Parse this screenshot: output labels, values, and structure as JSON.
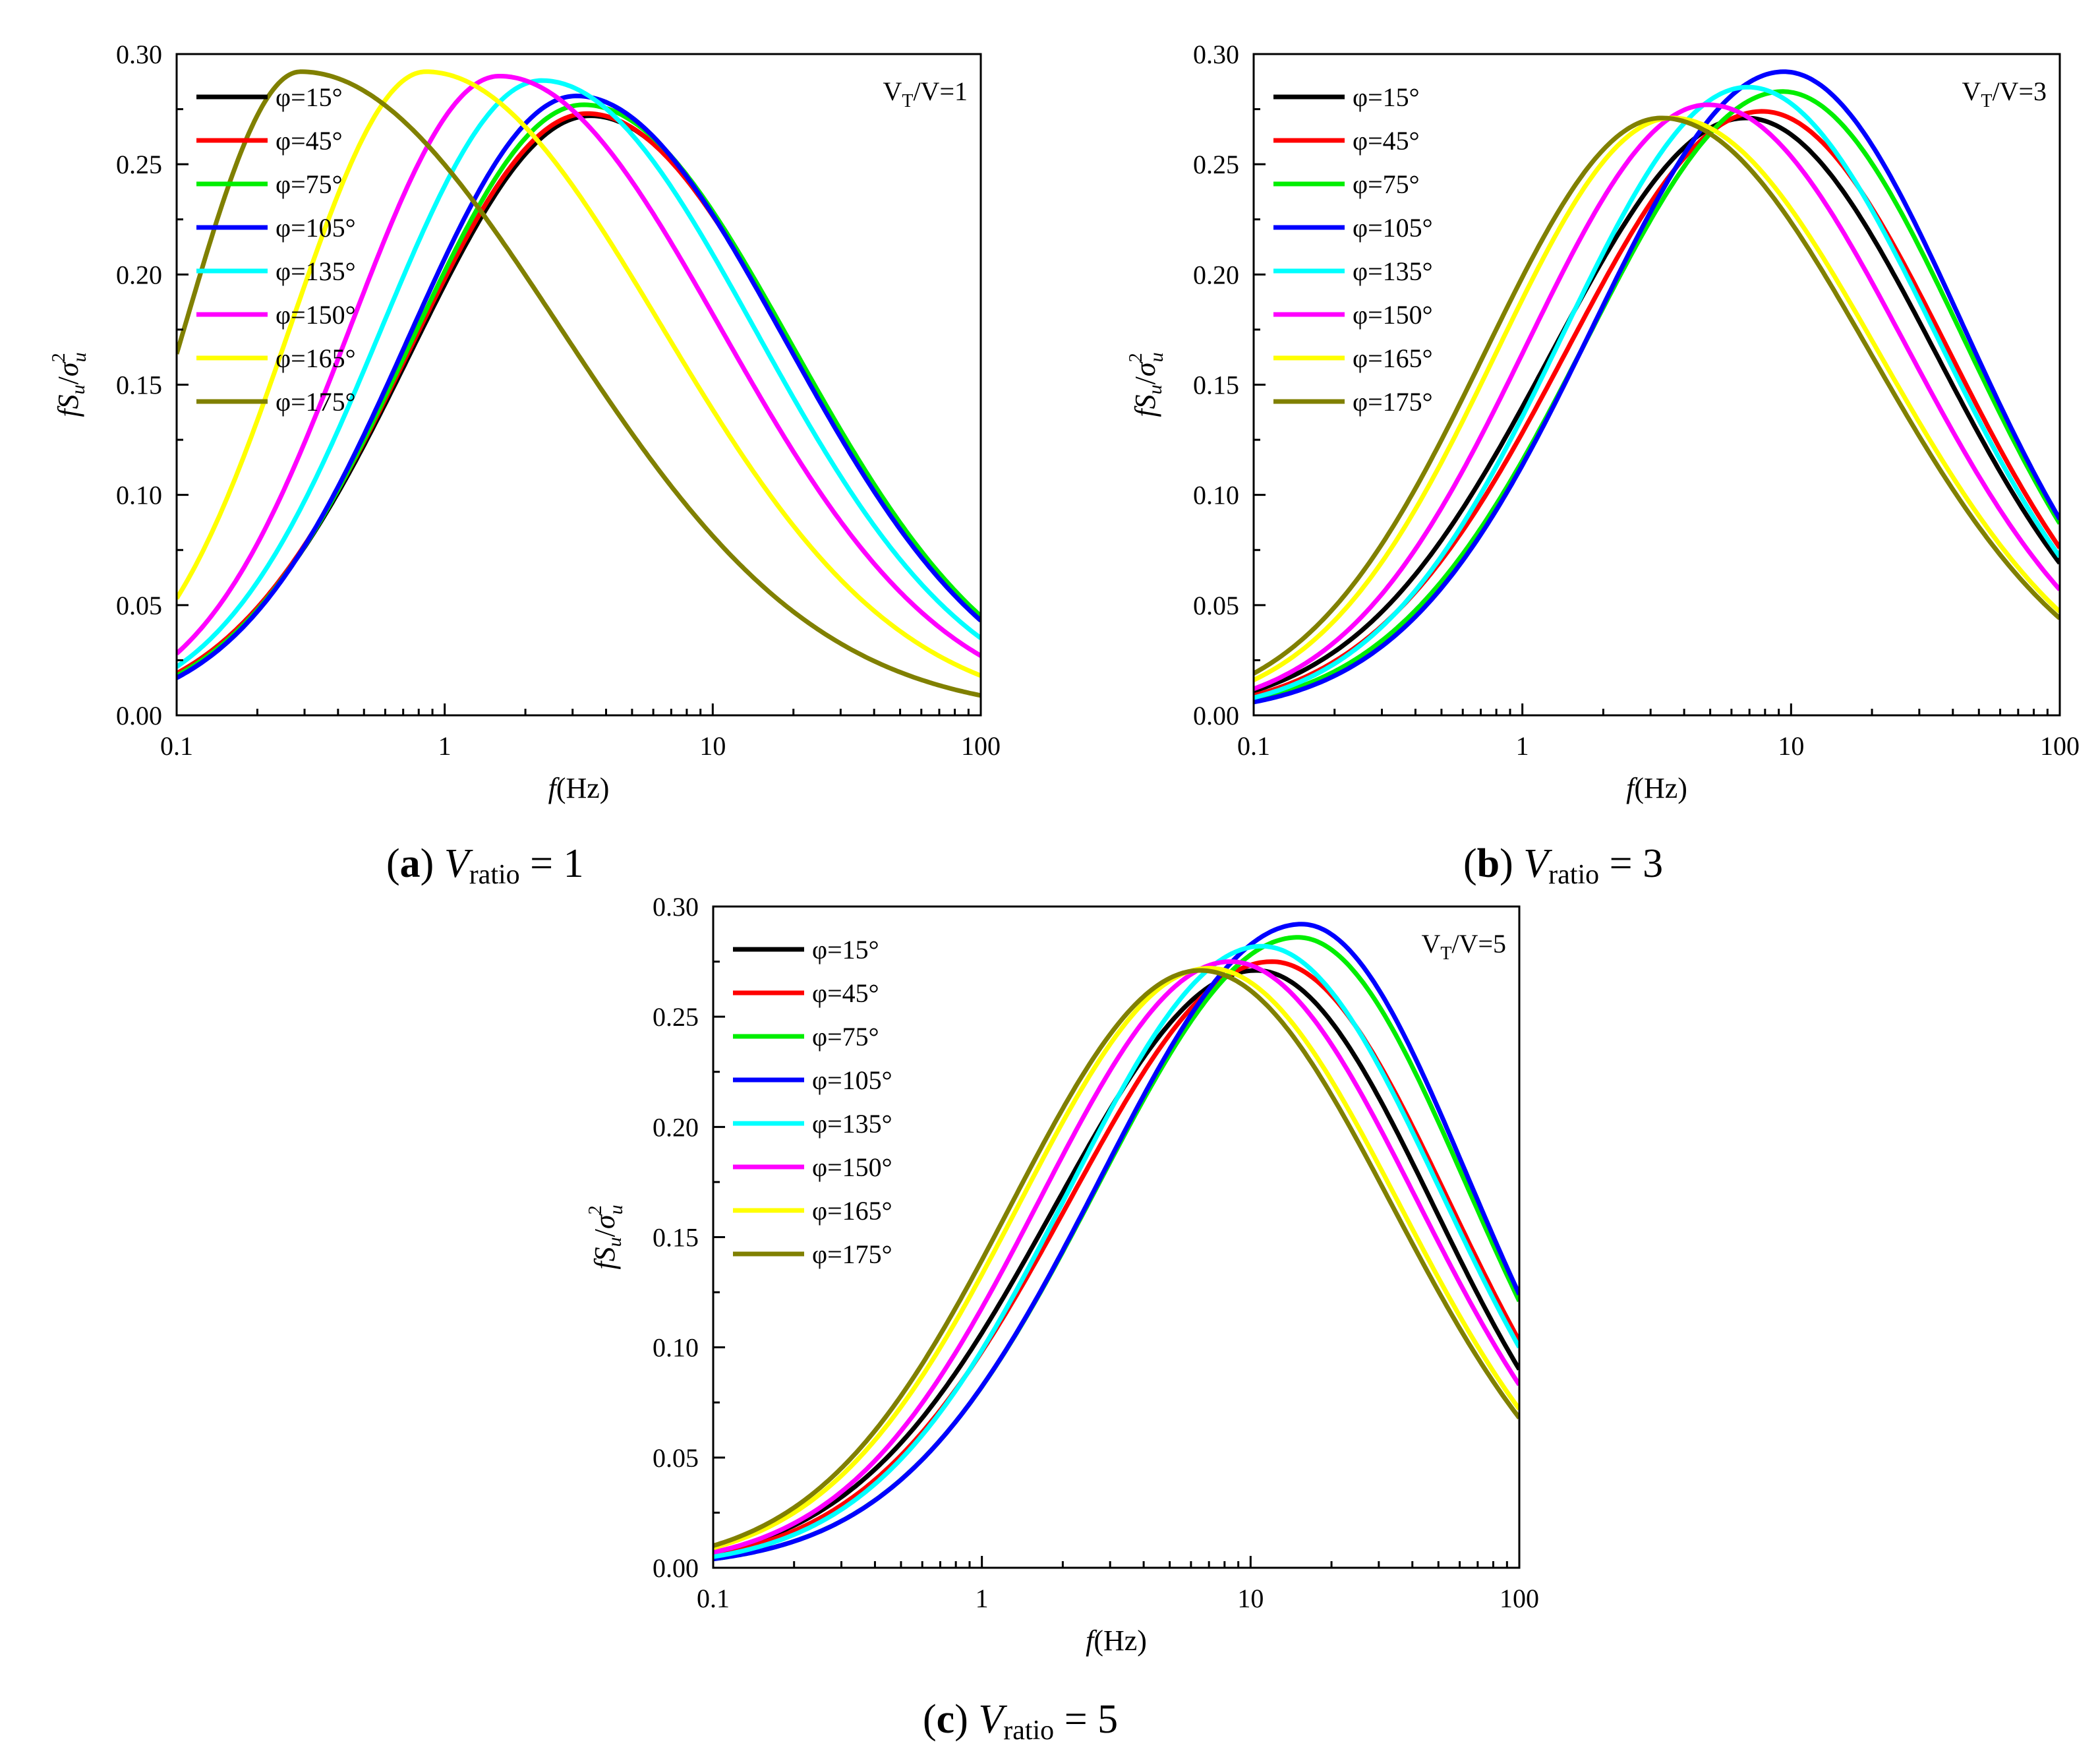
{
  "figure": {
    "captions": [
      {
        "letter": "a",
        "variable": "V",
        "subscript": "ratio",
        "equals": "=",
        "value": "1"
      },
      {
        "letter": "b",
        "variable": "V",
        "subscript": "ratio",
        "equals": "=",
        "value": "3"
      },
      {
        "letter": "c",
        "variable": "V",
        "subscript": "ratio",
        "equals": "=",
        "value": "5"
      }
    ]
  },
  "chart_data": [
    {
      "type": "line",
      "panel": "a",
      "annotation": {
        "main": "V",
        "sub": "T",
        "rest": "/V=1"
      },
      "xlabel": {
        "var": "f",
        "unit": "(Hz)"
      },
      "ylabel": {
        "f": "f",
        "S": "S",
        "u1": "u",
        "slash": "/",
        "sigma": "σ",
        "sup": "2",
        "u2": "u"
      },
      "xscale": "log",
      "xlim": [
        0.1,
        100
      ],
      "ylim": [
        0,
        0.3
      ],
      "xticks": [
        0.1,
        1,
        10,
        100
      ],
      "xtick_labels": [
        "0.1",
        "1",
        "10",
        "100"
      ],
      "yticks": [
        0,
        0.05,
        0.1,
        0.15,
        0.2,
        0.25,
        0.3
      ],
      "ytick_labels": [
        "0.00",
        "0.05",
        "0.10",
        "0.15",
        "0.20",
        "0.25",
        "0.30"
      ],
      "legend_position": "top-left",
      "series": [
        {
          "name": "φ=15°",
          "color": "#000000",
          "peak_f": 3.5,
          "peak": 0.272,
          "start": 0.019,
          "end": 0.043
        },
        {
          "name": "φ=45°",
          "color": "#ff0000",
          "peak_f": 3.4,
          "peak": 0.273,
          "start": 0.019,
          "end": 0.044
        },
        {
          "name": "φ=75°",
          "color": "#00ee00",
          "peak_f": 3.3,
          "peak": 0.277,
          "start": 0.018,
          "end": 0.045
        },
        {
          "name": "φ=105°",
          "color": "#0000ff",
          "peak_f": 3.1,
          "peak": 0.281,
          "start": 0.017,
          "end": 0.043
        },
        {
          "name": "φ=135°",
          "color": "#00ffff",
          "peak_f": 2.3,
          "peak": 0.288,
          "start": 0.022,
          "end": 0.035
        },
        {
          "name": "φ=150°",
          "color": "#ff00ff",
          "peak_f": 1.6,
          "peak": 0.29,
          "start": 0.028,
          "end": 0.027
        },
        {
          "name": "φ=165°",
          "color": "#ffff00",
          "peak_f": 0.85,
          "peak": 0.292,
          "start": 0.053,
          "end": 0.018
        },
        {
          "name": "φ=175°",
          "color": "#808000",
          "peak_f": 0.29,
          "peak": 0.292,
          "start": 0.164,
          "end": 0.009
        }
      ]
    },
    {
      "type": "line",
      "panel": "b",
      "annotation": {
        "main": "V",
        "sub": "T",
        "rest": "/V=3"
      },
      "xlabel": {
        "var": "f",
        "unit": "(Hz)"
      },
      "ylabel": {
        "f": "f",
        "S": "S",
        "u1": "u",
        "slash": "/",
        "sigma": "σ",
        "sup": "2",
        "u2": "u"
      },
      "xscale": "log",
      "xlim": [
        0.1,
        100
      ],
      "ylim": [
        0,
        0.3
      ],
      "xticks": [
        0.1,
        1,
        10,
        100
      ],
      "xtick_labels": [
        "0.1",
        "1",
        "10",
        "100"
      ],
      "yticks": [
        0,
        0.05,
        0.1,
        0.15,
        0.2,
        0.25,
        0.3
      ],
      "ytick_labels": [
        "0.00",
        "0.05",
        "0.10",
        "0.15",
        "0.20",
        "0.25",
        "0.30"
      ],
      "legend_position": "top-left",
      "series": [
        {
          "name": "φ=15°",
          "color": "#000000",
          "peak_f": 6.8,
          "peak": 0.271,
          "start": 0.011,
          "end": 0.069
        },
        {
          "name": "φ=45°",
          "color": "#ff0000",
          "peak_f": 7.8,
          "peak": 0.274,
          "start": 0.009,
          "end": 0.076
        },
        {
          "name": "φ=75°",
          "color": "#00ee00",
          "peak_f": 9.3,
          "peak": 0.283,
          "start": 0.007,
          "end": 0.087
        },
        {
          "name": "φ=105°",
          "color": "#0000ff",
          "peak_f": 9.4,
          "peak": 0.292,
          "start": 0.006,
          "end": 0.089
        },
        {
          "name": "φ=135°",
          "color": "#00ffff",
          "peak_f": 6.9,
          "peak": 0.285,
          "start": 0.008,
          "end": 0.072
        },
        {
          "name": "φ=150°",
          "color": "#ff00ff",
          "peak_f": 4.9,
          "peak": 0.277,
          "start": 0.012,
          "end": 0.057
        },
        {
          "name": "φ=165°",
          "color": "#ffff00",
          "peak_f": 3.6,
          "peak": 0.271,
          "start": 0.016,
          "end": 0.047
        },
        {
          "name": "φ=175°",
          "color": "#808000",
          "peak_f": 3.3,
          "peak": 0.271,
          "start": 0.019,
          "end": 0.044
        }
      ]
    },
    {
      "type": "line",
      "panel": "c",
      "annotation": {
        "main": "V",
        "sub": "T",
        "rest": "/V=5"
      },
      "xlabel": {
        "var": "f",
        "unit": "(Hz)"
      },
      "ylabel": {
        "f": "f",
        "S": "S",
        "u1": "u",
        "slash": "/",
        "sigma": "σ",
        "sup": "2",
        "u2": "u"
      },
      "xscale": "log",
      "xlim": [
        0.1,
        100
      ],
      "ylim": [
        0,
        0.3
      ],
      "xticks": [
        0.1,
        1,
        10,
        100
      ],
      "xtick_labels": [
        "0.1",
        "1",
        "10",
        "100"
      ],
      "yticks": [
        0,
        0.05,
        0.1,
        0.15,
        0.2,
        0.25,
        0.3
      ],
      "ytick_labels": [
        "0.00",
        "0.05",
        "0.10",
        "0.15",
        "0.20",
        "0.25",
        "0.30"
      ],
      "legend_position": "top-left",
      "series": [
        {
          "name": "φ=15°",
          "color": "#000000",
          "peak_f": 10.5,
          "peak": 0.271,
          "start": 0.007,
          "end": 0.09
        },
        {
          "name": "φ=45°",
          "color": "#ff0000",
          "peak_f": 12.0,
          "peak": 0.275,
          "start": 0.006,
          "end": 0.103
        },
        {
          "name": "φ=75°",
          "color": "#00ee00",
          "peak_f": 15.0,
          "peak": 0.286,
          "start": 0.004,
          "end": 0.121
        },
        {
          "name": "φ=105°",
          "color": "#0000ff",
          "peak_f": 15.5,
          "peak": 0.292,
          "start": 0.004,
          "end": 0.124
        },
        {
          "name": "φ=135°",
          "color": "#00ffff",
          "peak_f": 11.0,
          "peak": 0.282,
          "start": 0.005,
          "end": 0.1
        },
        {
          "name": "φ=150°",
          "color": "#ff00ff",
          "peak_f": 8.4,
          "peak": 0.275,
          "start": 0.007,
          "end": 0.083
        },
        {
          "name": "φ=165°",
          "color": "#ffff00",
          "peak_f": 7.0,
          "peak": 0.272,
          "start": 0.009,
          "end": 0.072
        },
        {
          "name": "φ=175°",
          "color": "#808000",
          "peak_f": 6.5,
          "peak": 0.271,
          "start": 0.01,
          "end": 0.068
        }
      ]
    }
  ]
}
